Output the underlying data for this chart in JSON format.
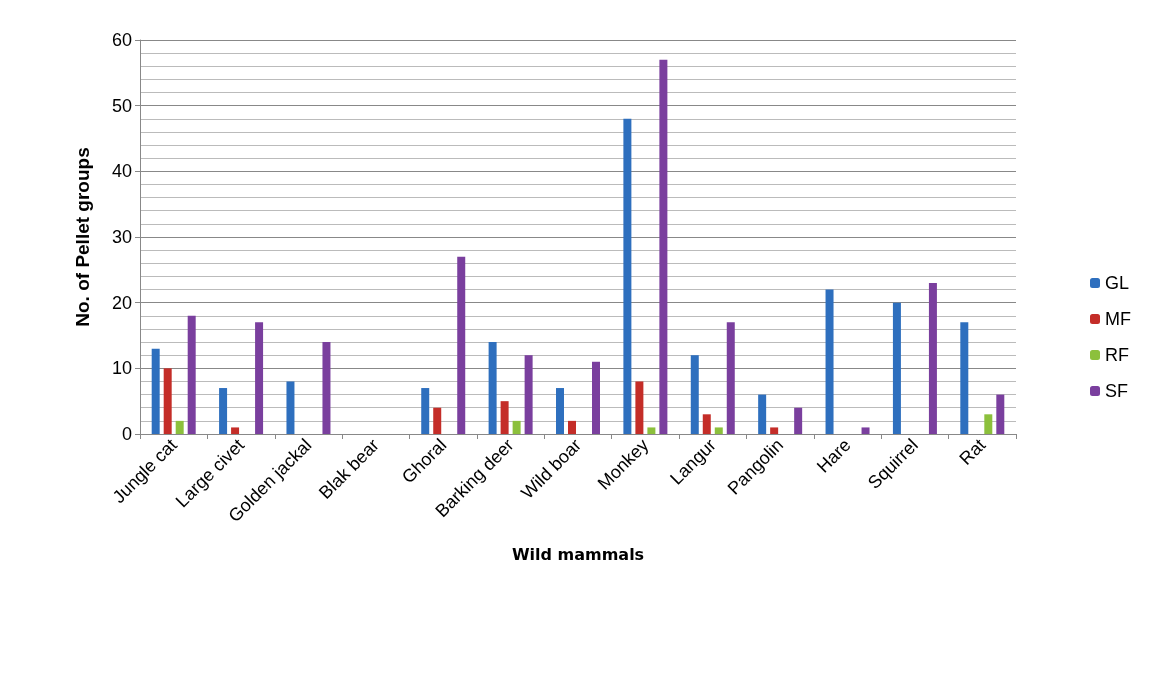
{
  "chart_data": {
    "type": "bar",
    "xlabel": "Wild mammals",
    "ylabel": "No. of Pellet groups",
    "categories": [
      "Jungle cat",
      "Large civet",
      "Golden jackal",
      "Blak bear",
      "Ghoral",
      "Barking deer",
      "Wild boar",
      "Monkey",
      "Langur",
      "Pangolin",
      "Hare",
      "Squirrel",
      "Rat"
    ],
    "series": [
      {
        "name": "GL",
        "color": "#2e6fbe",
        "values": [
          13,
          7,
          8,
          0,
          7,
          14,
          7,
          48,
          12,
          6,
          22,
          20,
          17
        ]
      },
      {
        "name": "MF",
        "color": "#c42d28",
        "values": [
          10,
          1,
          0,
          0,
          4,
          5,
          2,
          8,
          3,
          1,
          0,
          0,
          0
        ]
      },
      {
        "name": "RF",
        "color": "#8cc03c",
        "values": [
          2,
          0,
          0,
          0,
          0,
          2,
          0,
          1,
          1,
          0,
          0,
          0,
          3
        ]
      },
      {
        "name": "SF",
        "color": "#7a3f9e",
        "values": [
          18,
          17,
          14,
          0,
          27,
          12,
          11,
          57,
          17,
          4,
          1,
          23,
          6
        ]
      }
    ],
    "ylim": [
      0,
      60
    ],
    "yticks": [
      0,
      10,
      20,
      30,
      40,
      50,
      60
    ],
    "grid": "y",
    "legend": "right"
  }
}
